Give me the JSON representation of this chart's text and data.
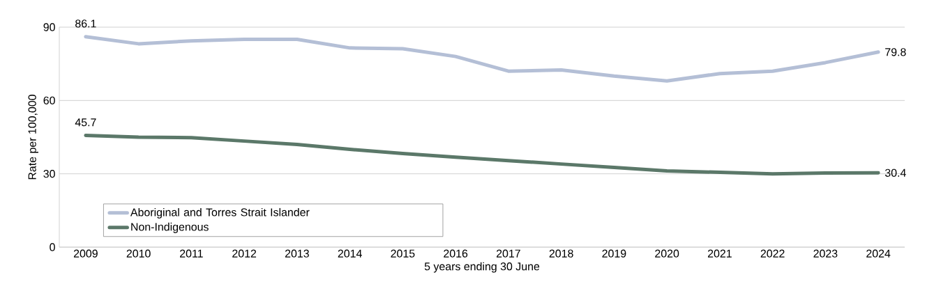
{
  "chart_data": {
    "type": "line",
    "xlabel": "5 years ending 30 June",
    "ylabel": "Rate per 100,000",
    "categories": [
      "2009",
      "2010",
      "2011",
      "2012",
      "2013",
      "2014",
      "2015",
      "2016",
      "2017",
      "2018",
      "2019",
      "2020",
      "2021",
      "2022",
      "2023",
      "2024"
    ],
    "series": [
      {
        "name": "Aboriginal and Torres Strait Islander",
        "color": "#b4bfd6",
        "values": [
          86.1,
          83.2,
          84.4,
          85.0,
          85.0,
          81.5,
          81.2,
          78.0,
          72.0,
          72.5,
          70.0,
          68.0,
          71.0,
          72.0,
          75.5,
          79.8
        ],
        "value_labels": [
          "86.1",
          null,
          null,
          null,
          null,
          null,
          null,
          null,
          null,
          null,
          null,
          null,
          null,
          null,
          null,
          "79.8"
        ]
      },
      {
        "name": "Non-Indigenous",
        "color": "#5b7869",
        "values": [
          45.7,
          45.0,
          44.8,
          43.4,
          42.0,
          40.0,
          38.3,
          36.8,
          35.4,
          34.0,
          32.6,
          31.2,
          30.6,
          30.0,
          30.3,
          30.4
        ],
        "value_labels": [
          "45.7",
          null,
          null,
          null,
          null,
          null,
          null,
          null,
          null,
          null,
          null,
          null,
          null,
          null,
          null,
          "30.4"
        ]
      }
    ],
    "ylim": [
      0,
      90
    ],
    "yticks": [
      0,
      30,
      60,
      90
    ],
    "grid": "y",
    "legend": "bottom left",
    "line_style": "solid"
  }
}
